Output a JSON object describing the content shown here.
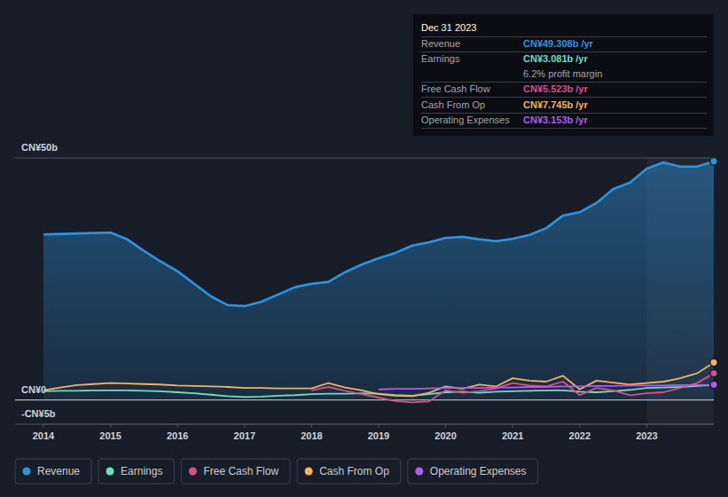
{
  "chart_data": {
    "type": "line",
    "x": [
      2014,
      2014.25,
      2014.5,
      2014.75,
      2015,
      2015.25,
      2015.5,
      2015.75,
      2016,
      2016.25,
      2016.5,
      2016.75,
      2017,
      2017.25,
      2017.5,
      2017.75,
      2018,
      2018.25,
      2018.5,
      2018.75,
      2019,
      2019.25,
      2019.5,
      2019.75,
      2020,
      2020.25,
      2020.5,
      2020.75,
      2021,
      2021.25,
      2021.5,
      2021.75,
      2022,
      2022.25,
      2022.5,
      2022.75,
      2023,
      2023.25,
      2023.5,
      2023.75,
      2024
    ],
    "xlim": [
      2014,
      2024
    ],
    "xticks": [
      2014,
      2015,
      2016,
      2017,
      2018,
      2019,
      2020,
      2021,
      2022,
      2023
    ],
    "ylim": [
      -5,
      50
    ],
    "yticks": [
      {
        "value": 50,
        "label": "CN¥50b"
      },
      {
        "value": 0,
        "label": "CN¥0"
      },
      {
        "value": -5,
        "label": "-CN¥5b"
      }
    ],
    "grid": true,
    "legend": "bottom",
    "series": [
      {
        "name": "Revenue",
        "color": "#2d95e0",
        "type": "area",
        "values": [
          34.2,
          34.3,
          34.4,
          34.5,
          34.6,
          33.2,
          30.8,
          28.6,
          26.6,
          24.0,
          21.4,
          19.6,
          19.4,
          20.3,
          21.8,
          23.3,
          24.0,
          24.4,
          26.4,
          28.0,
          29.3,
          30.4,
          31.9,
          32.6,
          33.5,
          33.7,
          33.2,
          32.8,
          33.3,
          34.1,
          35.5,
          38.1,
          38.8,
          40.7,
          43.6,
          44.9,
          47.8,
          49.1,
          48.2,
          48.2,
          49.308
        ]
      },
      {
        "name": "Earnings",
        "color": "#6fdcc6",
        "type": "line",
        "values": [
          1.8,
          1.9,
          1.9,
          2.0,
          2.0,
          2.0,
          1.9,
          1.8,
          1.6,
          1.4,
          1.1,
          0.8,
          0.6,
          0.7,
          0.9,
          1.0,
          1.2,
          1.3,
          1.3,
          1.4,
          1.3,
          1.0,
          0.9,
          1.2,
          1.6,
          1.7,
          1.5,
          1.7,
          1.8,
          1.9,
          2.0,
          2.0,
          1.7,
          1.6,
          1.8,
          2.1,
          2.5,
          2.6,
          2.7,
          2.9,
          3.081
        ]
      },
      {
        "name": "Free Cash Flow",
        "color": "#d6508b",
        "type": "line",
        "values": [
          null,
          null,
          null,
          null,
          null,
          null,
          null,
          null,
          null,
          null,
          null,
          null,
          null,
          null,
          null,
          null,
          2.0,
          2.7,
          1.9,
          1.2,
          0.5,
          -0.2,
          -0.5,
          -0.3,
          2.0,
          1.5,
          1.8,
          2.4,
          3.5,
          3.0,
          2.8,
          3.8,
          1.0,
          2.5,
          2.0,
          1.0,
          1.4,
          1.6,
          2.5,
          3.5,
          5.523
        ]
      },
      {
        "name": "Cash From Op",
        "color": "#f2b264",
        "type": "line",
        "values": [
          2.0,
          2.6,
          3.1,
          3.3,
          3.5,
          3.4,
          3.3,
          3.2,
          3.0,
          2.9,
          2.8,
          2.7,
          2.5,
          2.5,
          2.4,
          2.4,
          2.4,
          3.5,
          2.6,
          2.0,
          1.2,
          0.9,
          0.8,
          1.5,
          2.8,
          2.3,
          3.2,
          2.8,
          4.5,
          4.0,
          3.8,
          5.0,
          2.2,
          4.0,
          3.6,
          3.2,
          3.5,
          3.8,
          4.5,
          5.5,
          7.745
        ]
      },
      {
        "name": "Operating Expenses",
        "color": "#b35bf0",
        "type": "line",
        "values": [
          null,
          null,
          null,
          null,
          null,
          null,
          null,
          null,
          null,
          null,
          null,
          null,
          null,
          null,
          null,
          null,
          null,
          null,
          null,
          null,
          2.2,
          2.3,
          2.3,
          2.4,
          2.5,
          2.5,
          2.5,
          2.6,
          2.6,
          2.7,
          2.7,
          2.8,
          2.8,
          2.9,
          2.9,
          3.0,
          3.0,
          3.0,
          3.1,
          3.1,
          3.153
        ]
      }
    ]
  },
  "tooltip": {
    "date": "Dec 31 2023",
    "rows": [
      {
        "label": "Revenue",
        "value": "CN¥49.308b /yr"
      },
      {
        "label": "Earnings",
        "value": "CN¥3.081b /yr"
      },
      {
        "value": "6.2% profit margin"
      },
      {
        "label": "Free Cash Flow",
        "value": "CN¥5.523b /yr"
      },
      {
        "label": "Cash From Op",
        "value": "CN¥7.745b /yr"
      },
      {
        "label": "Operating Expenses",
        "value": "CN¥3.153b /yr"
      }
    ]
  }
}
